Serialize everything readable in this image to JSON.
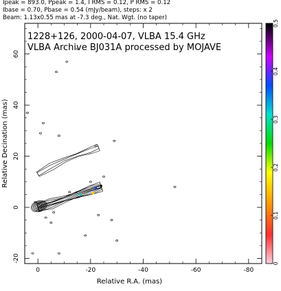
{
  "header": {
    "line1": "Ipeak = 893.0, Ppeak = 1.4, I RMS = 0.12, P RMS = 0.12",
    "line2": "Ibase = 0.70, Pbase = 0.54 (mJy/beam), steps: x 2",
    "line3": "Beam: 1.13x0.55 mas at -7.3 deg., Nat. Wgt. (no taper)"
  },
  "chart_data": {
    "type": "contour",
    "title": "1228+126, 2000-04-07, VLBA 15.4 GHz",
    "subtitle": "VLBA Archive BJ031A processed by MOJAVE",
    "xlabel": "Relative R.A. (mas)",
    "ylabel": "Relative Decination (mas)",
    "xlim": [
      5,
      -85
    ],
    "ylim": [
      -22,
      72
    ],
    "x_ticks": [
      0,
      -20,
      -40,
      -60,
      -80
    ],
    "y_ticks": [
      -20,
      0,
      20,
      40,
      60
    ],
    "colorbar": {
      "min": 0,
      "max": 0.5,
      "ticks": [
        0,
        0.1,
        0.2,
        0.3,
        0.4,
        0.5
      ],
      "colors": [
        "#ffc8d2",
        "#ff0000",
        "#ff8800",
        "#ffee00",
        "#00dd00",
        "#00ddcc",
        "#0044ff",
        "#cc00ff",
        "#000000"
      ]
    },
    "inner_jet": [
      {
        "ra": 0,
        "dec": 0
      },
      {
        "ra": -5,
        "dec": 1.5
      },
      {
        "ra": -10,
        "dec": 3.2
      },
      {
        "ra": -15,
        "dec": 5
      },
      {
        "ra": -20,
        "dec": 6.8
      },
      {
        "ra": -24,
        "dec": 8.2
      }
    ],
    "outer_jet": [
      {
        "ra": 0,
        "dec": 13
      },
      {
        "ra": -5,
        "dec": 16
      },
      {
        "ra": -10,
        "dec": 18.5
      },
      {
        "ra": -15,
        "dec": 20.5
      },
      {
        "ra": -20,
        "dec": 22.3
      },
      {
        "ra": -23,
        "dec": 23.5
      }
    ]
  }
}
